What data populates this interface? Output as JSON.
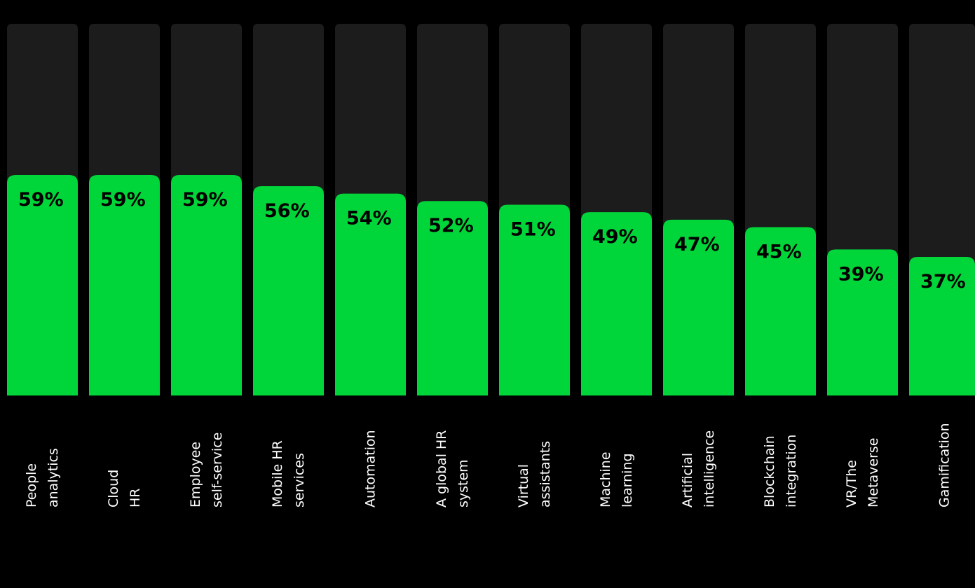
{
  "chart_data": {
    "type": "bar",
    "orientation": "vertical",
    "categories": [
      [
        "People",
        "analytics"
      ],
      [
        "Cloud",
        "HR"
      ],
      [
        "Employee",
        "self-service"
      ],
      [
        "Mobile HR",
        "services"
      ],
      [
        "Automation"
      ],
      [
        "A global HR",
        "system"
      ],
      [
        "Virtual",
        "assistants"
      ],
      [
        "Machine",
        "learning"
      ],
      [
        "Artificial",
        "intelligence"
      ],
      [
        "Blockchain",
        "integration"
      ],
      [
        "VR/The",
        "Metaverse"
      ],
      [
        "Gamification"
      ]
    ],
    "values": [
      59,
      59,
      59,
      56,
      54,
      52,
      51,
      49,
      47,
      45,
      39,
      37
    ],
    "value_labels": [
      "59%",
      "59%",
      "59%",
      "56%",
      "54%",
      "52%",
      "51%",
      "49%",
      "47%",
      "45%",
      "39%",
      "37%"
    ],
    "unit": "%",
    "ylim": [
      0,
      100
    ],
    "grid": false,
    "legend": "none",
    "colors": {
      "background": "#000000",
      "track": "#1c1c1c",
      "bar": "#00d639",
      "value_text": "#000000",
      "category_text": "#ffffff"
    }
  }
}
